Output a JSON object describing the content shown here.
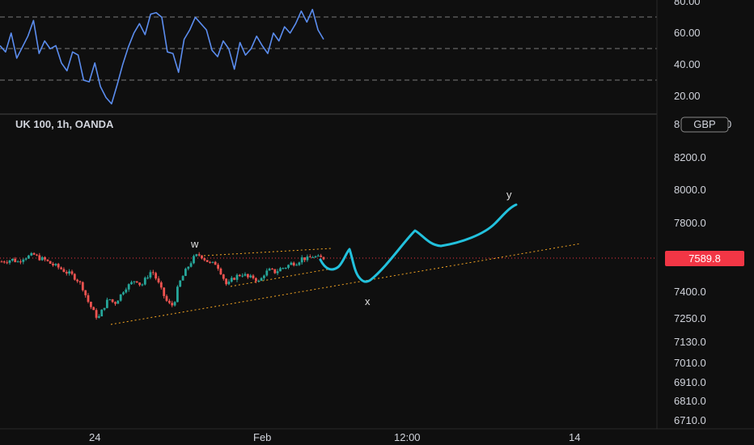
{
  "header": {
    "symbol_label": "UK 100, 1h, OANDA",
    "currency_badge": "GBP"
  },
  "colors": {
    "background": "#0f0f0f",
    "rsi_line": "#5b8def",
    "candle_up": "#26a69a",
    "candle_down": "#ef5350",
    "projection_line": "#22c1dd",
    "trendline": "#f5a623",
    "price_line": "#f23645",
    "price_tag_bg": "#f23645"
  },
  "price_tag": "7589.8",
  "wave_labels": {
    "w": "w",
    "x": "x",
    "y": "y"
  },
  "chart_data": [
    {
      "type": "line",
      "title": "",
      "ylim": [
        10,
        80
      ],
      "y_ticks": [
        "80.00",
        "60.00",
        "40.00",
        "20.00"
      ],
      "guide_levels": [
        30,
        50,
        70
      ],
      "series": [
        {
          "values": [
            52,
            48,
            60,
            44,
            51,
            58,
            68,
            47,
            55,
            50,
            52,
            41,
            36,
            48,
            46,
            30,
            29,
            41,
            26,
            19,
            15,
            27,
            40,
            51,
            60,
            66,
            59,
            72,
            73,
            70,
            48,
            47,
            35,
            56,
            62,
            70,
            66,
            62,
            49,
            45,
            55,
            50,
            37,
            54,
            46,
            50,
            58,
            52,
            47,
            60,
            55,
            64,
            60,
            66,
            74,
            67,
            75,
            62,
            56
          ]
        }
      ]
    },
    {
      "type": "candlestick",
      "title": "UK 100, 1h, OANDA",
      "y_ticks": [
        "8200.0",
        "8000.0",
        "7800.0",
        "7589.8",
        "7400.0",
        "7250.0",
        "7130.0",
        "7010.0",
        "6910.0",
        "6810.0",
        "6710.0"
      ],
      "x_ticks": [
        "24",
        "Feb",
        "12:00",
        "14"
      ],
      "last_price": 7589.8,
      "close_path": [
        7570,
        7575,
        7582,
        7568,
        7592,
        7600,
        7610,
        7590,
        7580,
        7560,
        7545,
        7530,
        7510,
        7495,
        7470,
        7430,
        7350,
        7290,
        7245,
        7310,
        7360,
        7330,
        7370,
        7420,
        7440,
        7470,
        7430,
        7480,
        7520,
        7460,
        7390,
        7330,
        7320,
        7440,
        7500,
        7555,
        7600,
        7610,
        7580,
        7555,
        7560,
        7500,
        7430,
        7470,
        7490,
        7500,
        7475,
        7480,
        7450,
        7505,
        7520,
        7510,
        7530,
        7540,
        7560,
        7565,
        7590,
        7585,
        7600,
        7592,
        7589.8
      ],
      "wave_points": [
        "w",
        "x",
        "y"
      ]
    }
  ]
}
